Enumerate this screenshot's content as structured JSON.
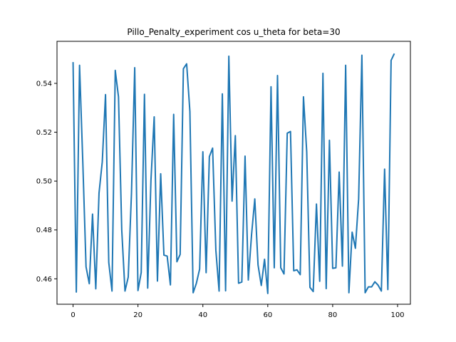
{
  "chart_data": {
    "type": "line",
    "title": "Pillo_Penalty_experiment cos u_theta for beta=30",
    "xlabel": "",
    "ylabel": "",
    "xlim": [
      -4.95,
      103.95
    ],
    "ylim": [
      0.4496,
      0.5572
    ],
    "xticks": [
      0,
      20,
      40,
      60,
      80,
      100
    ],
    "yticks": [
      0.46,
      0.48,
      0.5,
      0.52,
      0.54
    ],
    "ytick_labels": [
      "0.46",
      "0.48",
      "0.50",
      "0.52",
      "0.54"
    ],
    "grid": false,
    "series": [
      {
        "color": "#1f77b4",
        "x": [
          0,
          1,
          2,
          3,
          4,
          5,
          6,
          7,
          8,
          9,
          10,
          11,
          12,
          13,
          14,
          15,
          16,
          17,
          18,
          19,
          20,
          21,
          22,
          23,
          24,
          25,
          26,
          27,
          28,
          29,
          30,
          31,
          32,
          33,
          34,
          35,
          36,
          37,
          38,
          39,
          40,
          41,
          42,
          43,
          44,
          45,
          46,
          47,
          48,
          49,
          50,
          51,
          52,
          53,
          54,
          55,
          56,
          57,
          58,
          59,
          60,
          61,
          62,
          63,
          64,
          65,
          66,
          67,
          68,
          69,
          70,
          71,
          72,
          73,
          74,
          75,
          76,
          77,
          78,
          79,
          80,
          81,
          82,
          83,
          84,
          85,
          86,
          87,
          88,
          89,
          90,
          91,
          92,
          93,
          94,
          95,
          96,
          97,
          98,
          99
        ],
        "values": [
          0.5487,
          0.4546,
          0.5474,
          0.5078,
          0.4649,
          0.458,
          0.4865,
          0.4559,
          0.4951,
          0.5079,
          0.5354,
          0.4667,
          0.455,
          0.5453,
          0.5345,
          0.48,
          0.455,
          0.4607,
          0.495,
          0.5464,
          0.4552,
          0.4626,
          0.5355,
          0.4562,
          0.5003,
          0.5263,
          0.4591,
          0.503,
          0.4697,
          0.4693,
          0.4575,
          0.5273,
          0.467,
          0.47,
          0.546,
          0.548,
          0.5285,
          0.4543,
          0.4582,
          0.464,
          0.512,
          0.4625,
          0.51,
          0.5135,
          0.4717,
          0.455,
          0.5357,
          0.4551,
          0.5511,
          0.4918,
          0.5186,
          0.4582,
          0.4587,
          0.5102,
          0.4595,
          0.478,
          0.4927,
          0.4657,
          0.4573,
          0.468,
          0.454,
          0.5386,
          0.4645,
          0.5432,
          0.4645,
          0.462,
          0.5196,
          0.5203,
          0.4633,
          0.4637,
          0.4617,
          0.5345,
          0.512,
          0.4565,
          0.4548,
          0.4906,
          0.459,
          0.5441,
          0.456,
          0.5167,
          0.4643,
          0.4645,
          0.5037,
          0.4652,
          0.5474,
          0.4543,
          0.4791,
          0.4725,
          0.4927,
          0.5515,
          0.4543,
          0.4567,
          0.4567,
          0.4588,
          0.4574,
          0.455,
          0.5049,
          0.4556,
          0.5494,
          0.5522
        ]
      }
    ]
  }
}
